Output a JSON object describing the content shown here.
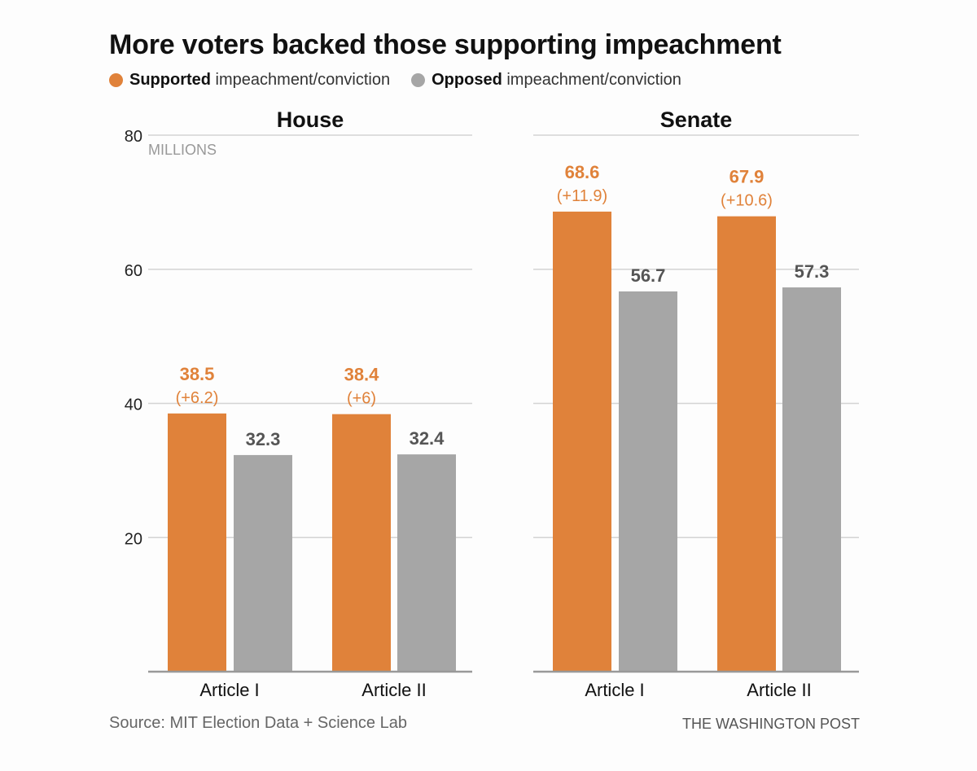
{
  "chart_data": [
    {
      "type": "bar",
      "title": "House",
      "categories": [
        "Article I",
        "Article II"
      ],
      "series": [
        {
          "name": "Supported",
          "values": [
            38.5,
            38.4
          ],
          "diff_labels": [
            "(+6.2)",
            "(+6)"
          ]
        },
        {
          "name": "Opposed",
          "values": [
            32.3,
            32.4
          ]
        }
      ],
      "ylabel": "MILLIONS",
      "ylim": [
        0,
        80
      ],
      "yticks": [
        20,
        40,
        60,
        80
      ],
      "grid": true
    },
    {
      "type": "bar",
      "title": "Senate",
      "categories": [
        "Article I",
        "Article II"
      ],
      "series": [
        {
          "name": "Supported",
          "values": [
            68.6,
            67.9
          ],
          "diff_labels": [
            "(+11.9)",
            "(+10.6)"
          ]
        },
        {
          "name": "Opposed",
          "values": [
            56.7,
            57.3
          ]
        }
      ],
      "ylim": [
        0,
        80
      ],
      "yticks": [
        20,
        40,
        60,
        80
      ],
      "grid": true
    }
  ],
  "header": {
    "title": "More voters backed those supporting impeachment"
  },
  "legend": [
    {
      "bold": "Supported",
      "rest": " impeachment/conviction",
      "color": "#e0823a"
    },
    {
      "bold": "Opposed",
      "rest": " impeachment/conviction",
      "color": "#a6a6a6"
    }
  ],
  "footer": {
    "source": "Source: MIT Election Data + Science Lab",
    "credit": "THE WASHINGTON POST"
  },
  "colors": {
    "supported": "#e0823a",
    "opposed": "#a6a6a6",
    "value_gray": "#555555",
    "grid": "#d4d4d4",
    "axis": "#999999"
  }
}
